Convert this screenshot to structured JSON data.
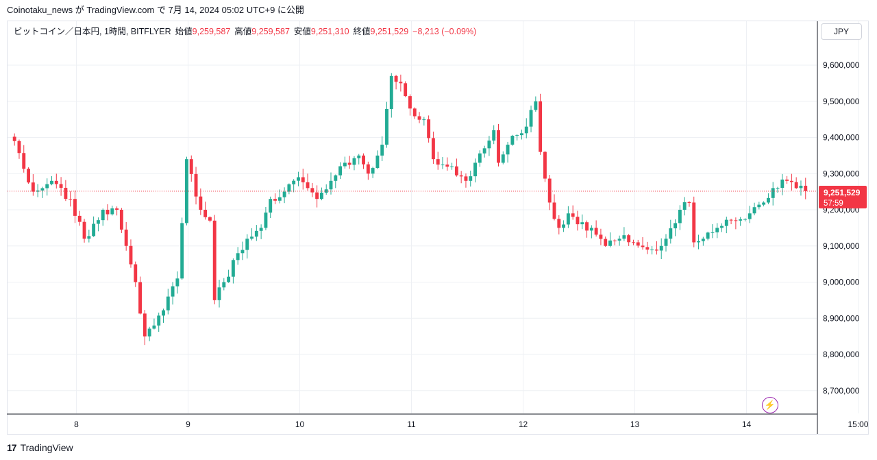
{
  "header": {
    "attribution": "Coinotaku_news が TradingView.com で 7月 14, 2024 05:02 UTC+9 に公開"
  },
  "legend": {
    "symbol": "ビットコイン／日本円, 1時間, BITFLYER",
    "open_label": "始値",
    "open": "9,259,587",
    "high_label": "高値",
    "high": "9,259,587",
    "low_label": "安値",
    "low": "9,251,310",
    "close_label": "終値",
    "close": "9,251,529",
    "change": "−8,213 (−0.09%)"
  },
  "currency_button": "JPY",
  "price_tag": {
    "price": "9,251,529",
    "countdown": "57:59"
  },
  "footer": {
    "logo": "17",
    "brand": "TradingView"
  },
  "colors": {
    "up": "#22ab94",
    "down": "#f23645",
    "grid": "#eef0f4",
    "axis": "#131722"
  },
  "chart_data": {
    "type": "candlestick",
    "y_ticks": [
      {
        "value": 9600000,
        "label": "9,600,000"
      },
      {
        "value": 9500000,
        "label": "9,500,000"
      },
      {
        "value": 9400000,
        "label": "9,400,000"
      },
      {
        "value": 9300000,
        "label": "9,300,000"
      },
      {
        "value": 9200000,
        "label": "9,200,000"
      },
      {
        "value": 9100000,
        "label": "9,100,000"
      },
      {
        "value": 9000000,
        "label": "9,000,000"
      },
      {
        "value": 8900000,
        "label": "8,900,000"
      },
      {
        "value": 8800000,
        "label": "8,800,000"
      },
      {
        "value": 8700000,
        "label": "8,700,000"
      }
    ],
    "x_ticks": [
      "8",
      "9",
      "10",
      "11",
      "12",
      "13",
      "14",
      "15:00"
    ],
    "last_price": 9251529,
    "bars_per_day": 24,
    "anchors": [
      [
        0,
        9390000
      ],
      [
        4,
        9250000
      ],
      [
        8,
        9280000
      ],
      [
        12,
        9230000
      ],
      [
        15,
        9120000
      ],
      [
        19,
        9200000
      ],
      [
        22,
        9200000
      ],
      [
        24,
        9100000
      ],
      [
        26,
        9000000
      ],
      [
        28,
        8850000
      ],
      [
        30,
        8880000
      ],
      [
        33,
        8960000
      ],
      [
        35,
        9010000
      ],
      [
        37,
        9340000
      ],
      [
        40,
        9200000
      ],
      [
        42,
        9170000
      ],
      [
        43,
        8950000
      ],
      [
        45,
        9000000
      ],
      [
        48,
        9080000
      ],
      [
        50,
        9120000
      ],
      [
        53,
        9150000
      ],
      [
        55,
        9230000
      ],
      [
        58,
        9250000
      ],
      [
        61,
        9290000
      ],
      [
        63,
        9260000
      ],
      [
        65,
        9230000
      ],
      [
        68,
        9280000
      ],
      [
        71,
        9330000
      ],
      [
        74,
        9350000
      ],
      [
        76,
        9300000
      ],
      [
        79,
        9380000
      ],
      [
        81,
        9570000
      ],
      [
        83,
        9550000
      ],
      [
        85,
        9480000
      ],
      [
        88,
        9450000
      ],
      [
        90,
        9340000
      ],
      [
        94,
        9320000
      ],
      [
        97,
        9280000
      ],
      [
        99,
        9330000
      ],
      [
        101,
        9370000
      ],
      [
        103,
        9420000
      ],
      [
        104,
        9330000
      ],
      [
        106,
        9380000
      ],
      [
        110,
        9430000
      ],
      [
        112,
        9500000
      ],
      [
        113,
        9360000
      ],
      [
        115,
        9220000
      ],
      [
        117,
        9150000
      ],
      [
        119,
        9190000
      ],
      [
        121,
        9160000
      ],
      [
        124,
        9150000
      ],
      [
        127,
        9100000
      ],
      [
        130,
        9120000
      ],
      [
        133,
        9110000
      ],
      [
        137,
        9090000
      ],
      [
        140,
        9120000
      ],
      [
        143,
        9200000
      ],
      [
        145,
        9220000
      ],
      [
        146,
        9110000
      ],
      [
        148,
        9120000
      ],
      [
        151,
        9150000
      ],
      [
        155,
        9170000
      ],
      [
        158,
        9190000
      ],
      [
        161,
        9220000
      ],
      [
        163,
        9260000
      ],
      [
        166,
        9280000
      ],
      [
        168,
        9260000
      ],
      [
        170,
        9251529
      ]
    ]
  }
}
